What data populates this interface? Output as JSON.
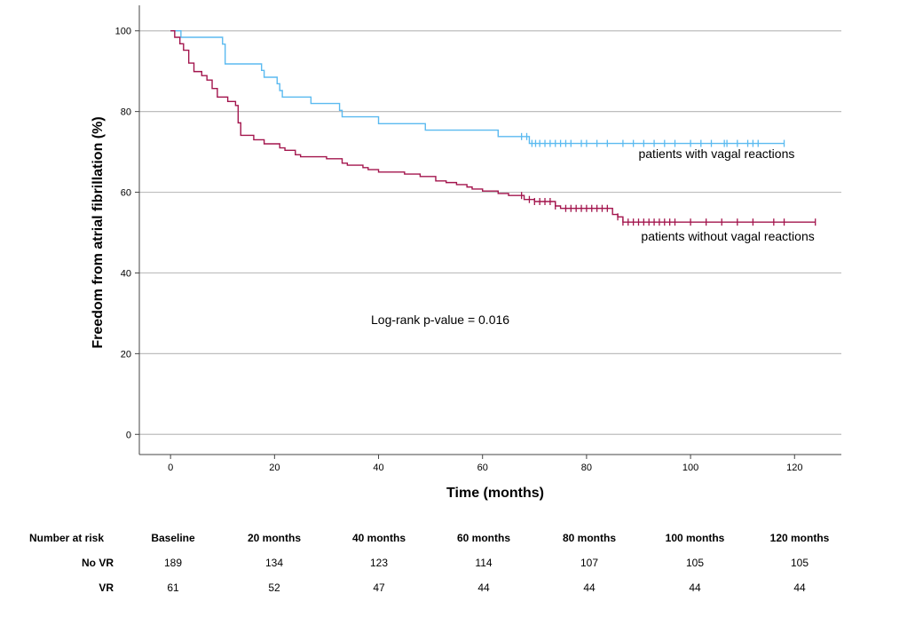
{
  "chart_data": {
    "type": "line",
    "subtype": "kaplan-meier",
    "title": "",
    "xlabel": "Time (months)",
    "ylabel": "Freedom from atrial fibrillation (%)",
    "xlim": [
      -6,
      129
    ],
    "ylim": [
      -5,
      105
    ],
    "xticks": [
      "0",
      "20",
      "40",
      "60",
      "80",
      "100",
      "120"
    ],
    "yticks": [
      "0",
      "20",
      "40",
      "60",
      "80",
      "100"
    ],
    "grid": "horizontal",
    "annotation": "Log-rank p-value = 0.016",
    "series": [
      {
        "name": "patients with vagal reactions",
        "color": "#5bbaf0",
        "steps": [
          [
            0,
            100
          ],
          [
            2,
            98.4
          ],
          [
            10,
            96.7
          ],
          [
            10.5,
            91.8
          ],
          [
            17.5,
            90.2
          ],
          [
            18,
            88.5
          ],
          [
            20.5,
            86.9
          ],
          [
            21,
            85.2
          ],
          [
            21.5,
            83.6
          ],
          [
            27,
            82
          ],
          [
            32.5,
            80.3
          ],
          [
            33,
            78.7
          ],
          [
            40,
            77
          ],
          [
            49,
            75.4
          ],
          [
            63,
            73.8
          ],
          [
            69,
            72.1
          ],
          [
            118,
            72.1
          ]
        ],
        "censored": [
          67.5,
          68.5,
          69.5,
          70.2,
          71,
          72,
          73,
          74,
          75,
          76,
          77,
          79,
          80,
          82,
          84,
          87,
          89,
          91,
          93,
          95,
          97,
          100,
          102,
          104,
          106.5,
          107,
          109,
          111,
          112,
          113,
          118
        ]
      },
      {
        "name": "patients without vagal reactions",
        "color": "#a3154d",
        "steps": [
          [
            0,
            100
          ],
          [
            0.8,
            98.4
          ],
          [
            1.8,
            96.8
          ],
          [
            2.5,
            95.2
          ],
          [
            3.5,
            92
          ],
          [
            4.5,
            89.9
          ],
          [
            6,
            88.9
          ],
          [
            7,
            87.8
          ],
          [
            8,
            85.7
          ],
          [
            9,
            83.6
          ],
          [
            11,
            82.5
          ],
          [
            12.5,
            81.5
          ],
          [
            13,
            77.2
          ],
          [
            13.5,
            74.1
          ],
          [
            16,
            73
          ],
          [
            18,
            72
          ],
          [
            21,
            71
          ],
          [
            22,
            70.4
          ],
          [
            24,
            69.3
          ],
          [
            25,
            68.8
          ],
          [
            30,
            68.3
          ],
          [
            33,
            67.2
          ],
          [
            34,
            66.7
          ],
          [
            37,
            66.1
          ],
          [
            38,
            65.6
          ],
          [
            40,
            65
          ],
          [
            45,
            64.5
          ],
          [
            48,
            63.9
          ],
          [
            51,
            62.8
          ],
          [
            53,
            62.4
          ],
          [
            55,
            61.9
          ],
          [
            57,
            61.3
          ],
          [
            58,
            60.8
          ],
          [
            60,
            60.3
          ],
          [
            63,
            59.7
          ],
          [
            65,
            59.2
          ],
          [
            68,
            58.2
          ],
          [
            70,
            57.7
          ],
          [
            74,
            56.6
          ],
          [
            75,
            56
          ],
          [
            85,
            54.5
          ],
          [
            86,
            53.9
          ],
          [
            87,
            52.6
          ],
          [
            124,
            52.6
          ]
        ],
        "censored": [
          67.5,
          69,
          70,
          71,
          72,
          73,
          74,
          76,
          77,
          78,
          79,
          80,
          81,
          82,
          83,
          84,
          86,
          87,
          88,
          89,
          90,
          91,
          92,
          93,
          94,
          95,
          96,
          97,
          100,
          103,
          106,
          109,
          112,
          116,
          118,
          124
        ]
      }
    ],
    "labels": [
      {
        "text": "patients with vagal reactions",
        "x": 90,
        "y": 68.5
      },
      {
        "text": "patients without vagal reactions",
        "x": 90.5,
        "y": 48
      }
    ],
    "risk_table": {
      "title": "Number at risk",
      "columns": [
        "Baseline",
        "20 months",
        "40 months",
        "60 months",
        "80 months",
        "100 months",
        "120 months"
      ],
      "rows": [
        {
          "label": "No VR",
          "values": [
            "189",
            "134",
            "123",
            "114",
            "107",
            "105",
            "105"
          ]
        },
        {
          "label": "VR",
          "values": [
            "61",
            "52",
            "47",
            "44",
            "44",
            "44",
            "44"
          ]
        }
      ]
    }
  }
}
